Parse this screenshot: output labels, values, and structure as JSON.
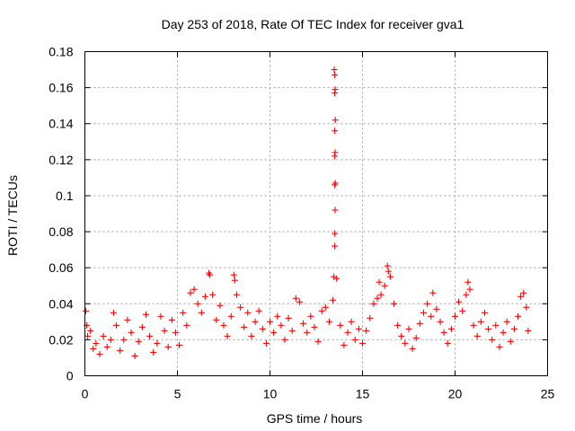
{
  "chart_data": {
    "type": "scatter",
    "title": "Day 253 of 2018, Rate Of TEC Index for receiver gva1",
    "xlabel": "GPS time / hours",
    "ylabel": "ROTI / TECUs",
    "xlim": [
      0,
      25
    ],
    "ylim": [
      0,
      0.18
    ],
    "grid": true,
    "legend": "none",
    "marker": "plus",
    "color": "#ff0000",
    "x_ticks": [
      "0",
      "5",
      "10",
      "15",
      "20",
      "25"
    ],
    "y_ticks": [
      "0",
      "0.02",
      "0.04",
      "0.06",
      "0.08",
      "0.1",
      "0.12",
      "0.14",
      "0.16",
      "0.18"
    ],
    "series": [
      {
        "name": "gva1",
        "points": [
          [
            0.05,
            0.036
          ],
          [
            0.1,
            0.028
          ],
          [
            0.15,
            0.022
          ],
          [
            0.3,
            0.025
          ],
          [
            0.45,
            0.015
          ],
          [
            0.6,
            0.018
          ],
          [
            0.8,
            0.012
          ],
          [
            1.0,
            0.022
          ],
          [
            1.2,
            0.016
          ],
          [
            1.4,
            0.02
          ],
          [
            1.55,
            0.035
          ],
          [
            1.7,
            0.028
          ],
          [
            1.9,
            0.014
          ],
          [
            2.1,
            0.02
          ],
          [
            2.3,
            0.031
          ],
          [
            2.5,
            0.024
          ],
          [
            2.7,
            0.011
          ],
          [
            2.9,
            0.019
          ],
          [
            3.1,
            0.027
          ],
          [
            3.3,
            0.034
          ],
          [
            3.5,
            0.022
          ],
          [
            3.7,
            0.013
          ],
          [
            3.9,
            0.018
          ],
          [
            4.1,
            0.033
          ],
          [
            4.3,
            0.025
          ],
          [
            4.5,
            0.016
          ],
          [
            4.7,
            0.031
          ],
          [
            4.9,
            0.024
          ],
          [
            5.1,
            0.017
          ],
          [
            5.3,
            0.035
          ],
          [
            5.5,
            0.028
          ],
          [
            5.7,
            0.046
          ],
          [
            5.9,
            0.048
          ],
          [
            6.1,
            0.04
          ],
          [
            6.3,
            0.035
          ],
          [
            6.5,
            0.044
          ],
          [
            6.7,
            0.057
          ],
          [
            6.75,
            0.056
          ],
          [
            6.9,
            0.045
          ],
          [
            7.1,
            0.031
          ],
          [
            7.3,
            0.039
          ],
          [
            7.5,
            0.028
          ],
          [
            7.7,
            0.022
          ],
          [
            7.9,
            0.033
          ],
          [
            8.05,
            0.056
          ],
          [
            8.1,
            0.053
          ],
          [
            8.2,
            0.045
          ],
          [
            8.4,
            0.038
          ],
          [
            8.6,
            0.027
          ],
          [
            8.8,
            0.035
          ],
          [
            9.0,
            0.022
          ],
          [
            9.2,
            0.03
          ],
          [
            9.4,
            0.036
          ],
          [
            9.6,
            0.026
          ],
          [
            9.8,
            0.018
          ],
          [
            10.0,
            0.03
          ],
          [
            10.2,
            0.024
          ],
          [
            10.4,
            0.033
          ],
          [
            10.6,
            0.028
          ],
          [
            10.8,
            0.02
          ],
          [
            11.0,
            0.032
          ],
          [
            11.2,
            0.025
          ],
          [
            11.4,
            0.043
          ],
          [
            11.6,
            0.041
          ],
          [
            11.8,
            0.029
          ],
          [
            12.0,
            0.024
          ],
          [
            12.2,
            0.033
          ],
          [
            12.4,
            0.027
          ],
          [
            12.6,
            0.019
          ],
          [
            12.8,
            0.036
          ],
          [
            13.0,
            0.038
          ],
          [
            13.2,
            0.03
          ],
          [
            13.4,
            0.042
          ],
          [
            13.45,
            0.055
          ],
          [
            13.5,
            0.072
          ],
          [
            13.5,
            0.079
          ],
          [
            13.52,
            0.092
          ],
          [
            13.5,
            0.106
          ],
          [
            13.53,
            0.107
          ],
          [
            13.5,
            0.122
          ],
          [
            13.52,
            0.124
          ],
          [
            13.5,
            0.136
          ],
          [
            13.53,
            0.142
          ],
          [
            13.5,
            0.157
          ],
          [
            13.52,
            0.159
          ],
          [
            13.5,
            0.167
          ],
          [
            13.47,
            0.17
          ],
          [
            13.6,
            0.054
          ],
          [
            13.8,
            0.028
          ],
          [
            14.0,
            0.017
          ],
          [
            14.2,
            0.024
          ],
          [
            14.4,
            0.03
          ],
          [
            14.6,
            0.02
          ],
          [
            14.8,
            0.026
          ],
          [
            15.0,
            0.018
          ],
          [
            15.2,
            0.025
          ],
          [
            15.4,
            0.032
          ],
          [
            15.6,
            0.04
          ],
          [
            15.8,
            0.043
          ],
          [
            15.9,
            0.052
          ],
          [
            16.0,
            0.045
          ],
          [
            16.2,
            0.05
          ],
          [
            16.35,
            0.061
          ],
          [
            16.4,
            0.058
          ],
          [
            16.5,
            0.055
          ],
          [
            16.7,
            0.04
          ],
          [
            16.9,
            0.028
          ],
          [
            17.1,
            0.022
          ],
          [
            17.3,
            0.018
          ],
          [
            17.5,
            0.026
          ],
          [
            17.7,
            0.015
          ],
          [
            17.9,
            0.021
          ],
          [
            18.1,
            0.029
          ],
          [
            18.3,
            0.035
          ],
          [
            18.5,
            0.04
          ],
          [
            18.7,
            0.033
          ],
          [
            18.8,
            0.046
          ],
          [
            19.0,
            0.037
          ],
          [
            19.2,
            0.03
          ],
          [
            19.4,
            0.024
          ],
          [
            19.6,
            0.018
          ],
          [
            19.8,
            0.026
          ],
          [
            20.0,
            0.033
          ],
          [
            20.2,
            0.041
          ],
          [
            20.4,
            0.036
          ],
          [
            20.6,
            0.045
          ],
          [
            20.7,
            0.052
          ],
          [
            20.8,
            0.048
          ],
          [
            21.0,
            0.028
          ],
          [
            21.2,
            0.022
          ],
          [
            21.4,
            0.03
          ],
          [
            21.6,
            0.035
          ],
          [
            21.8,
            0.026
          ],
          [
            22.0,
            0.02
          ],
          [
            22.2,
            0.028
          ],
          [
            22.4,
            0.016
          ],
          [
            22.6,
            0.024
          ],
          [
            22.8,
            0.03
          ],
          [
            23.0,
            0.019
          ],
          [
            23.2,
            0.026
          ],
          [
            23.4,
            0.033
          ],
          [
            23.55,
            0.044
          ],
          [
            23.7,
            0.046
          ],
          [
            23.85,
            0.038
          ],
          [
            23.95,
            0.025
          ]
        ]
      }
    ]
  }
}
